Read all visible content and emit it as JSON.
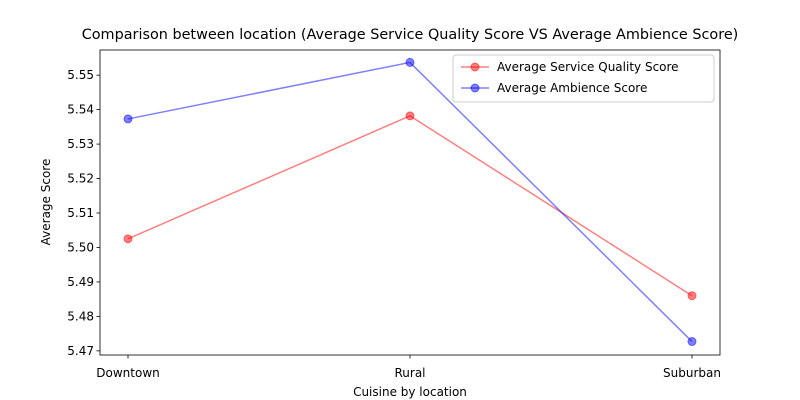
{
  "chart_data": {
    "type": "line",
    "title": "Comparison between location (Average Service Quality Score VS Average Ambience Score)",
    "xlabel": "Cuisine by location",
    "ylabel": "Average Score",
    "categories": [
      "Downtown",
      "Rural",
      "Suburban"
    ],
    "ylim": [
      5.4688,
      5.5573
    ],
    "yticks": [
      "5.47",
      "5.48",
      "5.49",
      "5.50",
      "5.51",
      "5.52",
      "5.53",
      "5.54",
      "5.55"
    ],
    "grid": false,
    "legend_position": "top-right",
    "series": [
      {
        "name": "Average Service Quality Score",
        "color": "#ff0000",
        "values": [
          5.5025,
          5.5382,
          5.486
        ]
      },
      {
        "name": "Average Ambience Score",
        "color": "#0000ff",
        "values": [
          5.5373,
          5.5537,
          5.4727
        ]
      }
    ]
  }
}
